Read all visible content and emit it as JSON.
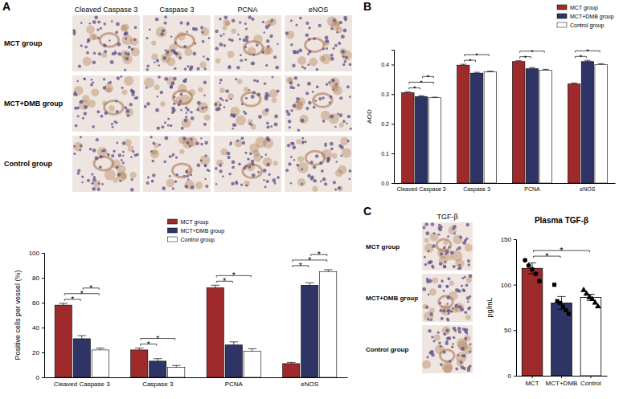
{
  "panel_labels": [
    "A",
    "B",
    "C"
  ],
  "image_grids": [
    {
      "columns": [
        "Cleaved Caspase 3",
        "Caspase 3",
        "PCNA",
        "eNOS"
      ],
      "rows": [
        "MCT group",
        "MCT+DMB group",
        "Control group"
      ]
    },
    {
      "columns": [
        "TGF-β"
      ],
      "rows": [
        "MCT group",
        "MCT+DMB group",
        "Control group"
      ]
    }
  ],
  "chart_data": [
    {
      "type": "bar",
      "y_label": "AOD",
      "categories": [
        "Cleaved Caspase 3",
        "Caspase 3",
        "PCNA",
        "eNOS"
      ],
      "series": [
        {
          "name": "MCT group",
          "color": "#9e2a2b",
          "values": [
            0.305,
            0.398,
            0.41,
            0.335
          ],
          "errors": [
            0.003,
            0.003,
            0.003,
            0.003
          ]
        },
        {
          "name": "MCT+DMB group",
          "color": "#2e3566",
          "values": [
            0.292,
            0.371,
            0.386,
            0.41
          ],
          "errors": [
            0.003,
            0.003,
            0.004,
            0.004
          ]
        },
        {
          "name": "Control group",
          "color": "#ffffff",
          "values": [
            0.288,
            0.375,
            0.381,
            0.4
          ],
          "errors": [
            0.002,
            0.003,
            0.003,
            0.003
          ]
        }
      ],
      "ylim": [
        0,
        0.45
      ],
      "yticks": [
        {
          "value": 0,
          "label": "0.0"
        },
        {
          "value": 0.1,
          "label": "0.1"
        },
        {
          "value": 0.2,
          "label": "0.2"
        },
        {
          "value": 0.3,
          "label": "0.3"
        },
        {
          "value": 0.4,
          "label": "0.4"
        }
      ],
      "legend": "top-right",
      "comparisons": [
        {
          "category": "Cleaved Caspase 3",
          "groups": [
            "MCT group",
            "MCT+DMB group"
          ],
          "label": "*"
        },
        {
          "category": "Cleaved Caspase 3",
          "groups": [
            "MCT group",
            "Control group"
          ],
          "label": "*"
        },
        {
          "category": "Cleaved Caspase 3",
          "groups": [
            "MCT+DMB group",
            "Control group"
          ],
          "label": "*"
        },
        {
          "category": "Caspase 3",
          "groups": [
            "MCT group",
            "MCT+DMB group"
          ],
          "label": "*"
        },
        {
          "category": "Caspase 3",
          "groups": [
            "MCT group",
            "Control group"
          ],
          "label": "*"
        },
        {
          "category": "PCNA",
          "groups": [
            "MCT group",
            "MCT+DMB group"
          ],
          "label": "*"
        },
        {
          "category": "PCNA",
          "groups": [
            "MCT group",
            "Control group"
          ],
          "label": "*"
        },
        {
          "category": "eNOS",
          "groups": [
            "MCT group",
            "MCT+DMB group"
          ],
          "label": "*"
        },
        {
          "category": "eNOS",
          "groups": [
            "MCT group",
            "Control group"
          ],
          "label": "*"
        }
      ]
    },
    {
      "type": "bar",
      "y_label": "Positive cells per vessel (%)",
      "categories": [
        "Cleaved Caspase 3",
        "Caspase 3",
        "PCNA",
        "eNOS"
      ],
      "series": [
        {
          "name": "MCT group",
          "color": "#9e2a2b",
          "values": [
            58,
            22,
            72,
            11
          ],
          "errors": [
            1.5,
            1.5,
            2,
            1
          ]
        },
        {
          "name": "MCT+DMB group",
          "color": "#2e3566",
          "values": [
            31,
            13,
            26,
            74
          ],
          "errors": [
            2.5,
            2,
            2.5,
            2
          ]
        },
        {
          "name": "Control group",
          "color": "#ffffff",
          "values": [
            22,
            8,
            21,
            85
          ],
          "errors": [
            1.5,
            1.5,
            2,
            1.5
          ]
        }
      ],
      "ylim": [
        0,
        100
      ],
      "yticks": [
        0,
        20,
        40,
        60,
        80,
        100
      ],
      "legend": "top",
      "comparisons": [
        {
          "category": "Cleaved Caspase 3",
          "groups": [
            "MCT group",
            "MCT+DMB group"
          ],
          "label": "*"
        },
        {
          "category": "Cleaved Caspase 3",
          "groups": [
            "MCT group",
            "Control group"
          ],
          "label": "*"
        },
        {
          "category": "Cleaved Caspase 3",
          "groups": [
            "MCT+DMB group",
            "Control group"
          ],
          "label": "*"
        },
        {
          "category": "Caspase 3",
          "groups": [
            "MCT group",
            "MCT+DMB group"
          ],
          "label": "*"
        },
        {
          "category": "Caspase 3",
          "groups": [
            "MCT group",
            "Control group"
          ],
          "label": "*"
        },
        {
          "category": "PCNA",
          "groups": [
            "MCT group",
            "MCT+DMB group"
          ],
          "label": "*"
        },
        {
          "category": "PCNA",
          "groups": [
            "MCT group",
            "Control group"
          ],
          "label": "*"
        },
        {
          "category": "eNOS",
          "groups": [
            "MCT group",
            "MCT+DMB group"
          ],
          "label": "*"
        },
        {
          "category": "eNOS",
          "groups": [
            "MCT group",
            "Control group"
          ],
          "label": "*"
        },
        {
          "category": "eNOS",
          "groups": [
            "MCT+DMB group",
            "Control group"
          ],
          "label": "*"
        }
      ]
    },
    {
      "type": "bar_scatter",
      "title": "Plasma TGF-β",
      "y_label": "pg/mL",
      "series": [
        {
          "name": "MCT",
          "color": "#9e2a2b",
          "marker": "circle",
          "values": [
            118
          ],
          "errors": [
            6
          ],
          "points": [
            127,
            121,
            117,
            112,
            104
          ]
        },
        {
          "name": "MCT+DMB",
          "color": "#2e3566",
          "marker": "square",
          "values": [
            80
          ],
          "errors": [
            7
          ],
          "points": [
            100,
            82,
            80,
            76,
            72,
            68
          ]
        },
        {
          "name": "Control",
          "color": "#ffffff",
          "marker": "triangle",
          "values": [
            86
          ],
          "errors": [
            3.5
          ],
          "points": [
            94,
            90,
            86,
            84,
            80,
            76
          ]
        }
      ],
      "ylim": [
        0,
        150
      ],
      "yticks": [
        0,
        50,
        100,
        150
      ],
      "comparisons": [
        {
          "groups": [
            "MCT",
            "MCT+DMB"
          ],
          "label": "*"
        },
        {
          "groups": [
            "MCT",
            "Control"
          ],
          "label": "*"
        }
      ]
    }
  ]
}
